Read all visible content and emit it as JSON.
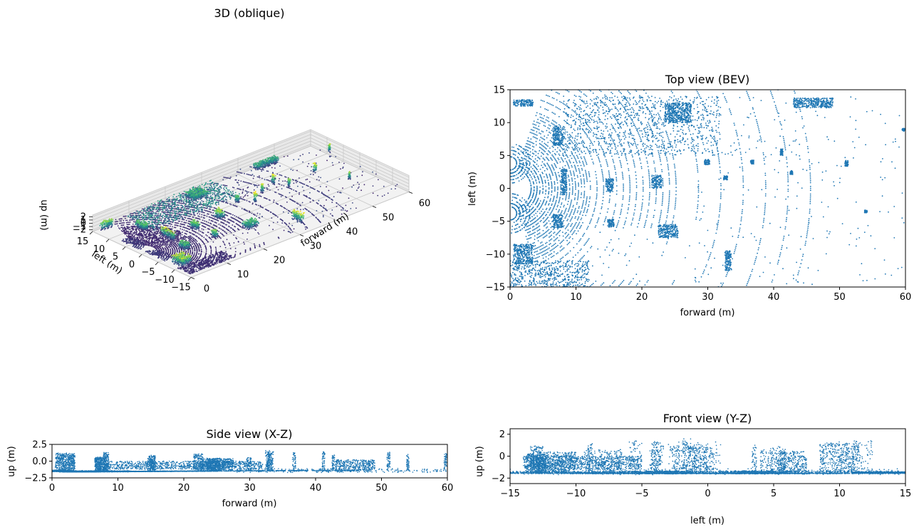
{
  "figure": {
    "point_color": "#1f77b4",
    "colormap": "viridis",
    "colormap_stops": [
      "#440154",
      "#3b528b",
      "#21908d",
      "#5dc963",
      "#fde725"
    ]
  },
  "chart_data": [
    {
      "id": "oblique",
      "type": "scatter",
      "projection": "3d",
      "title": "3D (oblique)",
      "xlabel": "forward (m)",
      "ylabel": "left (m)",
      "zlabel": "up (m)",
      "xticks": [
        0,
        10,
        20,
        30,
        40,
        50,
        60
      ],
      "yticks": [
        15,
        10,
        5,
        0,
        -5,
        -10,
        -15
      ],
      "zticks": [
        2,
        1,
        0,
        -1,
        -2
      ],
      "xlim": [
        0,
        60
      ],
      "ylim": [
        -15,
        15
      ],
      "zlim": [
        -2.5,
        2.5
      ],
      "color_by": "up (m)",
      "grid": true
    },
    {
      "id": "bev",
      "type": "scatter",
      "title": "Top view (BEV)",
      "xlabel": "forward (m)",
      "ylabel": "left (m)",
      "xlim": [
        0,
        60
      ],
      "ylim": [
        -15,
        15
      ],
      "xticks": [
        0,
        10,
        20,
        30,
        40,
        50,
        60
      ],
      "yticks": [
        -15,
        -10,
        -5,
        0,
        5,
        10,
        15
      ],
      "grid": false
    },
    {
      "id": "side",
      "type": "scatter",
      "title": "Side view (X-Z)",
      "xlabel": "forward (m)",
      "ylabel": "up (m)",
      "xlim": [
        0,
        60
      ],
      "ylim": [
        -2.5,
        2.5
      ],
      "xticks": [
        0,
        10,
        20,
        30,
        40,
        50,
        60
      ],
      "yticks": [
        -2.5,
        0.0,
        2.5
      ],
      "ytick_labels": [
        "−2.5",
        "0.0",
        "2.5"
      ],
      "grid": false
    },
    {
      "id": "front",
      "type": "scatter",
      "title": "Front view (Y-Z)",
      "xlabel": "left (m)",
      "ylabel": "up (m)",
      "xlim": [
        -15,
        15
      ],
      "ylim": [
        -2.5,
        2.5
      ],
      "xticks": [
        -15,
        -10,
        -5,
        0,
        5,
        10,
        15
      ],
      "yticks": [
        -2,
        0,
        2
      ],
      "grid": false
    }
  ]
}
